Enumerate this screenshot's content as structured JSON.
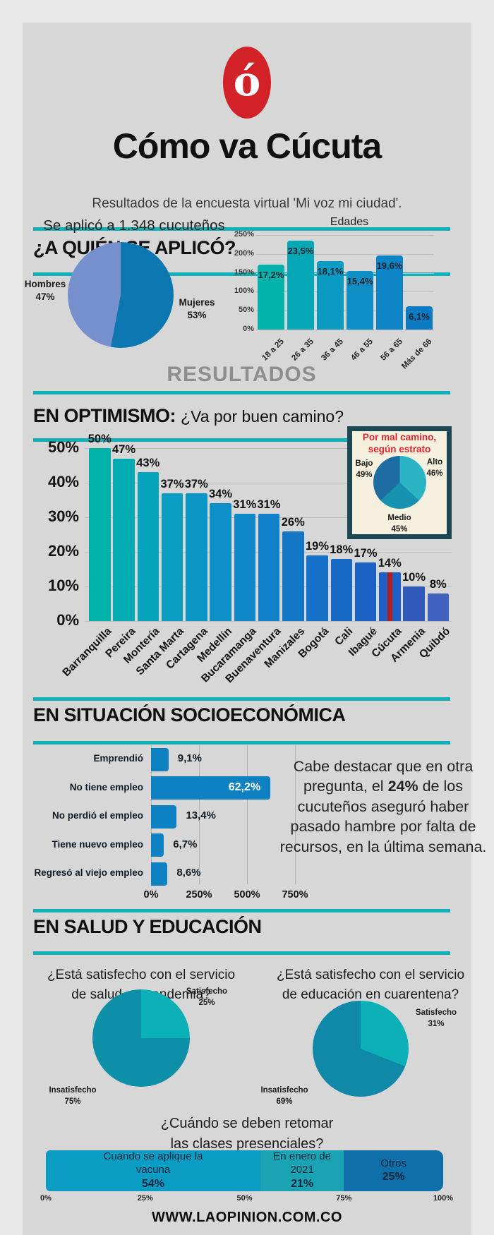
{
  "header": {
    "logo_glyph": "ó",
    "title": "Cómo va Cúcuta",
    "subtitle": "Resultados de la encuesta virtual 'Mi voz mi ciudad'."
  },
  "sections": {
    "quien": {
      "heading": "¿A QUIÉN SE APLICÓ?"
    },
    "resultados_heading": "RESULTADOS",
    "optimismo": {
      "heading": "EN OPTIMISMO:",
      "question": "¿Va por buen camino?"
    },
    "socio": {
      "heading": "EN SITUACIÓN SOCIOECONÓMICA",
      "note_pre": "Cabe destacar que en otra pregunta, el ",
      "note_bold": "24%",
      "note_post": " de los cucuteños aseguró haber pasado hambre por falta de recursos, en la última semana."
    },
    "salud": {
      "heading": "EN SALUD Y EDUCACIÓN",
      "question_salud": "¿Está satisfecho con el servicio de salud en pandemia?",
      "question_educacion": "¿Está satisfecho con el servicio de educación en cuarentena?"
    }
  },
  "footer": {
    "url": "WWW.LAOPINION.COM.CO"
  },
  "colors": {
    "background": "#d7d7d7",
    "frame": "#e9e9e9",
    "accent_teal": "#10b2ba",
    "logo_red": "#d32128",
    "highlight_red": "#b21d22",
    "inset_bg": "#f6f0de",
    "inset_border": "#1d4753",
    "resultados_gray": "#8e8e8e"
  },
  "chart_data": [
    {
      "id": "genero",
      "type": "pie",
      "title": "Se aplicó a 1.348 cucuteños",
      "slices": [
        {
          "label": "Mujeres",
          "pct": "53%",
          "value": 53,
          "color": "#0d77b2"
        },
        {
          "label": "Hombres",
          "pct": "47%",
          "value": 47,
          "color": "#7590cc"
        }
      ]
    },
    {
      "id": "edades",
      "type": "bar",
      "title": "Edades",
      "categories": [
        "18 a 25",
        "26 a 35",
        "36 a 45",
        "46 a 55",
        "56 a 65",
        "Más de 66"
      ],
      "values": [
        17.2,
        23.5,
        18.1,
        15.4,
        19.6,
        6.1
      ],
      "value_labels": [
        "17,2%",
        "23,5%",
        "18,1%",
        "15,4%",
        "19,6%",
        "6,1%"
      ],
      "plotted_values": [
        172,
        235,
        181,
        154,
        196,
        61
      ],
      "y_tick_labels": [
        "250%",
        "200%",
        "150%",
        "100%",
        "50%",
        "0%"
      ],
      "y_tick_values": [
        250,
        200,
        150,
        100,
        50,
        0
      ],
      "ylim": [
        0,
        250
      ],
      "bar_colors": [
        "#02b3ab",
        "#06a8b8",
        "#0b9bc2",
        "#0d8fc6",
        "#0d84c6",
        "#0a7bc2"
      ]
    },
    {
      "id": "optimismo",
      "type": "bar",
      "question": "¿Va por buen camino?",
      "categories": [
        "Barranquilla",
        "Pereira",
        "Montería",
        "Santa Marta",
        "Cartagena",
        "Medellín",
        "Bucaramanga",
        "Buenaventura",
        "Manizales",
        "Bogotá",
        "Cali",
        "Ibagué",
        "Cúcuta",
        "Armenia",
        "Quibdó"
      ],
      "values": [
        50,
        47,
        43,
        37,
        37,
        34,
        31,
        31,
        26,
        19,
        18,
        17,
        14,
        10,
        8
      ],
      "value_labels": [
        "50%",
        "47%",
        "43%",
        "37%",
        "37%",
        "34%",
        "31%",
        "31%",
        "26%",
        "19%",
        "18%",
        "17%",
        "14%",
        "10%",
        "8%"
      ],
      "y_tick_labels": [
        "50%",
        "40%",
        "30%",
        "20%",
        "10%",
        "0%"
      ],
      "y_tick_values": [
        50,
        40,
        30,
        20,
        10,
        0
      ],
      "ylim": [
        0,
        50
      ],
      "bar_colors": [
        "#00b2a7",
        "#03acb3",
        "#06a5bc",
        "#099ec2",
        "#0b97c6",
        "#0d8fc8",
        "#0f88c9",
        "#1180c9",
        "#1378c8",
        "#1570c7",
        "#1769c5",
        "#1962c4",
        "#1d5fc2",
        "#3159ba",
        "#3f63bf"
      ],
      "highlight": {
        "category": "Cúcuta",
        "stripe_color": "#b21d22"
      }
    },
    {
      "id": "estrato",
      "type": "pie",
      "title_line1": "Por mal camino,",
      "title_line2": "según estrato",
      "slices": [
        {
          "label": "Alto",
          "pct": "46%",
          "value": 46,
          "draw": 37,
          "color": "#2bb5c4"
        },
        {
          "label": "Medio",
          "pct": "45%",
          "value": 45,
          "draw": 26,
          "color": "#1693b0"
        },
        {
          "label": "Bajo",
          "pct": "49%",
          "value": 49,
          "draw": 37,
          "color": "#1d6da2"
        }
      ]
    },
    {
      "id": "socioeconomica",
      "type": "bar-horizontal",
      "categories": [
        "Emprendió",
        "No tiene empleo",
        "No perdió el empleo",
        "Tiene nuevo empleo",
        "Regresó al viejo empleo"
      ],
      "values": [
        9.1,
        62.2,
        13.4,
        6.7,
        8.6
      ],
      "value_labels": [
        "9,1%",
        "62,2%",
        "13,4%",
        "6,7%",
        "8,6%"
      ],
      "plotted_values": [
        91,
        622,
        134,
        67,
        86
      ],
      "x_tick_labels": [
        "0%",
        "250%",
        "500%",
        "750%"
      ],
      "x_tick_values": [
        0,
        250,
        500,
        750
      ],
      "bar_color": "#0e81c2",
      "label_inside_index": 1
    },
    {
      "id": "salud",
      "type": "pie",
      "slices": [
        {
          "label": "Satisfecho",
          "pct": "25%",
          "value": 25,
          "color": "#0bb1b6"
        },
        {
          "label": "Insatisfecho",
          "pct": "75%",
          "value": 75,
          "color": "#0f90a9"
        }
      ]
    },
    {
      "id": "educacion",
      "type": "pie",
      "slices": [
        {
          "label": "Satisfecho",
          "pct": "31%",
          "value": 31,
          "color": "#0bb1b6"
        },
        {
          "label": "Insatisfecho",
          "pct": "69%",
          "value": 69,
          "color": "#1089a9"
        }
      ]
    },
    {
      "id": "clases",
      "type": "stacked-bar",
      "title": "¿Cuándo se deben retomar las clases presenciales?",
      "segments": [
        {
          "label": "Cuando se aplique la vacuna",
          "pct": "54%",
          "value": 54,
          "color": "#0a9cc3"
        },
        {
          "label": "En enero de 2021",
          "pct": "21%",
          "value": 21,
          "color": "#1aa3b3"
        },
        {
          "label": "Otros",
          "pct": "25%",
          "value": 25,
          "color": "#0e6fa9"
        }
      ],
      "x_tick_labels": [
        "0%",
        "25%",
        "50%",
        "75%",
        "100%"
      ],
      "x_tick_values": [
        0,
        25,
        50,
        75,
        100
      ]
    }
  ]
}
